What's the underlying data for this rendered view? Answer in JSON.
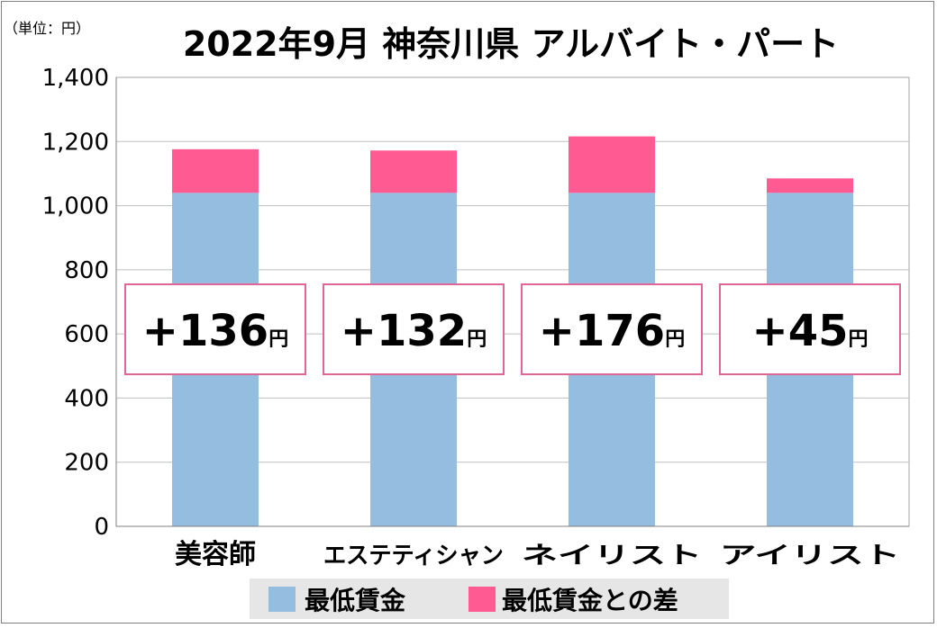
{
  "chart_data": {
    "type": "bar",
    "stacked": true,
    "title": "2022年9月 神奈川県 アルバイト・パート",
    "unit_label": "（単位：円）",
    "categories": [
      "美容師",
      "エステティシャン",
      "ネイリスト",
      "アイリスト"
    ],
    "series": [
      {
        "name": "最低賃金",
        "color": "#94bddf",
        "values": [
          1040,
          1040,
          1040,
          1040
        ]
      },
      {
        "name": "最低賃金との差",
        "color": "#ff5a91",
        "values": [
          136,
          132,
          176,
          45
        ]
      }
    ],
    "annotations": [
      {
        "number": "+136",
        "unit": "円"
      },
      {
        "number": "+132",
        "unit": "円"
      },
      {
        "number": "+176",
        "unit": "円"
      },
      {
        "number": "+45",
        "unit": "円"
      }
    ],
    "ylim": [
      0,
      1400
    ],
    "yticks": [
      0,
      200,
      400,
      600,
      800,
      1000,
      1200,
      1400
    ],
    "ytick_labels": [
      "0",
      "200",
      "400",
      "600",
      "800",
      "1,000",
      "1,200",
      "1,400"
    ],
    "grid": true,
    "legend_position": "bottom"
  }
}
